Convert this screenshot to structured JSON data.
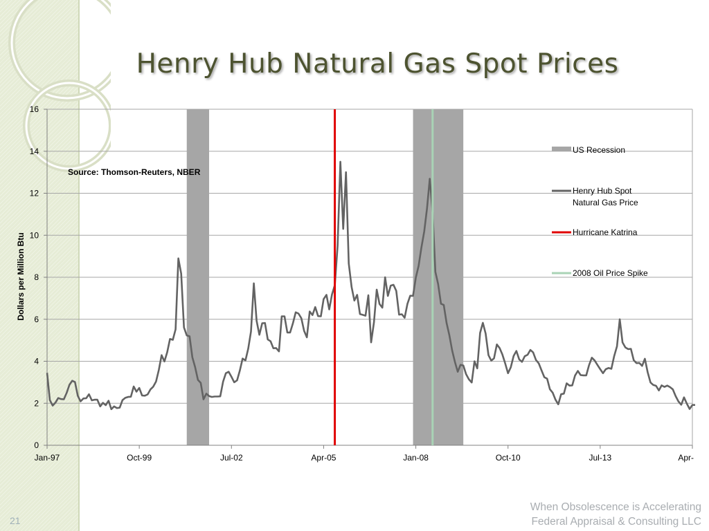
{
  "slide": {
    "title": "Henry Hub Natural Gas Spot Prices",
    "footer_line1": "When Obsolescence is Accelerating",
    "footer_line2": "Federal Appraisal & Consulting LLC",
    "slide_number": "21"
  },
  "colors": {
    "recession": "#a6a6a6",
    "price_line": "#636363",
    "katrina": "#e00000",
    "oil_spike": "#a9d3b5",
    "grid": "#a6a6a6",
    "title": "#4d5330"
  },
  "chart_data": {
    "type": "line",
    "title": "Henry Hub Natural Gas Spot Prices",
    "annotation": "Source: Thomson-Reuters, NBER",
    "xlabel": "",
    "ylabel": "Dollars per Million Btu",
    "ylim": [
      0,
      16
    ],
    "yticks": [
      0,
      2,
      4,
      6,
      8,
      10,
      12,
      14,
      16
    ],
    "x_start": "1997-01",
    "x_end": "2016-04",
    "xticks": [
      {
        "label": "Jan-97",
        "date": "1997-01"
      },
      {
        "label": "Oct-99",
        "date": "1999-10"
      },
      {
        "label": "Jul-02",
        "date": "2002-07"
      },
      {
        "label": "Apr-05",
        "date": "2005-04"
      },
      {
        "label": "Jan-08",
        "date": "2008-01"
      },
      {
        "label": "Oct-10",
        "date": "2010-10"
      },
      {
        "label": "Jul-13",
        "date": "2013-07"
      },
      {
        "label": "Apr-",
        "date": "2016-04"
      }
    ],
    "legend": [
      {
        "name": "US Recession",
        "kind": "band"
      },
      {
        "name": "Henry Hub Spot Natural Gas Price",
        "line1": "Henry Hub Spot",
        "line2": "Natural Gas Price",
        "kind": "line"
      },
      {
        "name": "Hurricane Katrina",
        "kind": "vline"
      },
      {
        "name": "2008 Oil Price Spike",
        "kind": "vline"
      }
    ],
    "recessions": [
      {
        "start": "2001-03",
        "end": "2001-11"
      },
      {
        "start": "2007-12",
        "end": "2009-06"
      }
    ],
    "events": [
      {
        "name": "Hurricane Katrina",
        "date": "2005-08"
      },
      {
        "name": "2008 Oil Price Spike",
        "date": "2008-07"
      }
    ],
    "series": [
      {
        "name": "Henry Hub Spot Natural Gas Price",
        "start": "1997-01",
        "frequency": "monthly",
        "values": [
          3.45,
          2.15,
          1.89,
          2.03,
          2.25,
          2.2,
          2.19,
          2.49,
          2.88,
          3.07,
          3.01,
          2.35,
          2.09,
          2.23,
          2.24,
          2.43,
          2.14,
          2.17,
          2.17,
          1.85,
          2.02,
          1.91,
          2.12,
          1.72,
          1.85,
          1.77,
          1.79,
          2.15,
          2.26,
          2.3,
          2.31,
          2.8,
          2.55,
          2.73,
          2.37,
          2.36,
          2.42,
          2.66,
          2.79,
          3.04,
          3.59,
          4.29,
          3.99,
          4.43,
          5.06,
          5.02,
          5.52,
          8.9,
          8.17,
          5.61,
          5.23,
          5.19,
          4.19,
          3.72,
          3.11,
          2.97,
          2.19,
          2.46,
          2.34,
          2.3,
          2.32,
          2.32,
          2.33,
          3.03,
          3.43,
          3.5,
          3.26,
          3.0,
          3.09,
          3.56,
          4.13,
          4.04,
          4.6,
          5.42,
          7.71,
          5.93,
          5.26,
          5.81,
          5.82,
          5.04,
          4.95,
          4.62,
          4.63,
          4.47,
          6.14,
          6.14,
          5.37,
          5.37,
          5.8,
          6.33,
          6.27,
          6.05,
          5.45,
          5.14,
          6.37,
          6.2,
          6.58,
          6.15,
          6.14,
          6.96,
          7.16,
          6.47,
          7.18,
          7.63,
          9.5,
          13.5,
          10.3,
          13.0,
          8.66,
          7.54,
          6.89,
          7.16,
          6.25,
          6.21,
          6.17,
          7.14,
          4.9,
          5.85,
          7.41,
          6.73,
          6.55,
          8.0,
          7.11,
          7.6,
          7.64,
          7.35,
          6.22,
          6.24,
          6.07,
          6.74,
          7.12,
          7.11,
          7.99,
          8.54,
          9.41,
          10.18,
          11.27,
          12.69,
          11.09,
          8.26,
          7.67,
          6.74,
          6.68,
          5.82,
          5.24,
          4.52,
          3.96,
          3.5,
          3.83,
          3.8,
          3.38,
          3.14,
          2.99,
          4.0,
          3.66,
          5.35,
          5.83,
          5.32,
          4.29,
          4.03,
          4.14,
          4.8,
          4.63,
          4.32,
          3.89,
          3.43,
          3.71,
          4.25,
          4.49,
          4.09,
          3.97,
          4.24,
          4.31,
          4.54,
          4.42,
          4.06,
          3.9,
          3.57,
          3.24,
          3.17,
          2.67,
          2.5,
          2.17,
          1.95,
          2.43,
          2.46,
          2.95,
          2.84,
          2.85,
          3.32,
          3.54,
          3.34,
          3.33,
          3.33,
          3.81,
          4.17,
          4.04,
          3.83,
          3.62,
          3.43,
          3.62,
          3.68,
          3.64,
          4.24,
          4.71,
          6.0,
          4.9,
          4.66,
          4.58,
          4.59,
          4.05,
          3.91,
          3.92,
          3.78,
          4.12,
          3.48,
          2.99,
          2.87,
          2.83,
          2.61,
          2.85,
          2.78,
          2.84,
          2.77,
          2.66,
          2.34,
          2.09,
          1.93,
          2.28,
          1.99,
          1.73,
          1.92,
          1.92
        ]
      }
    ]
  }
}
